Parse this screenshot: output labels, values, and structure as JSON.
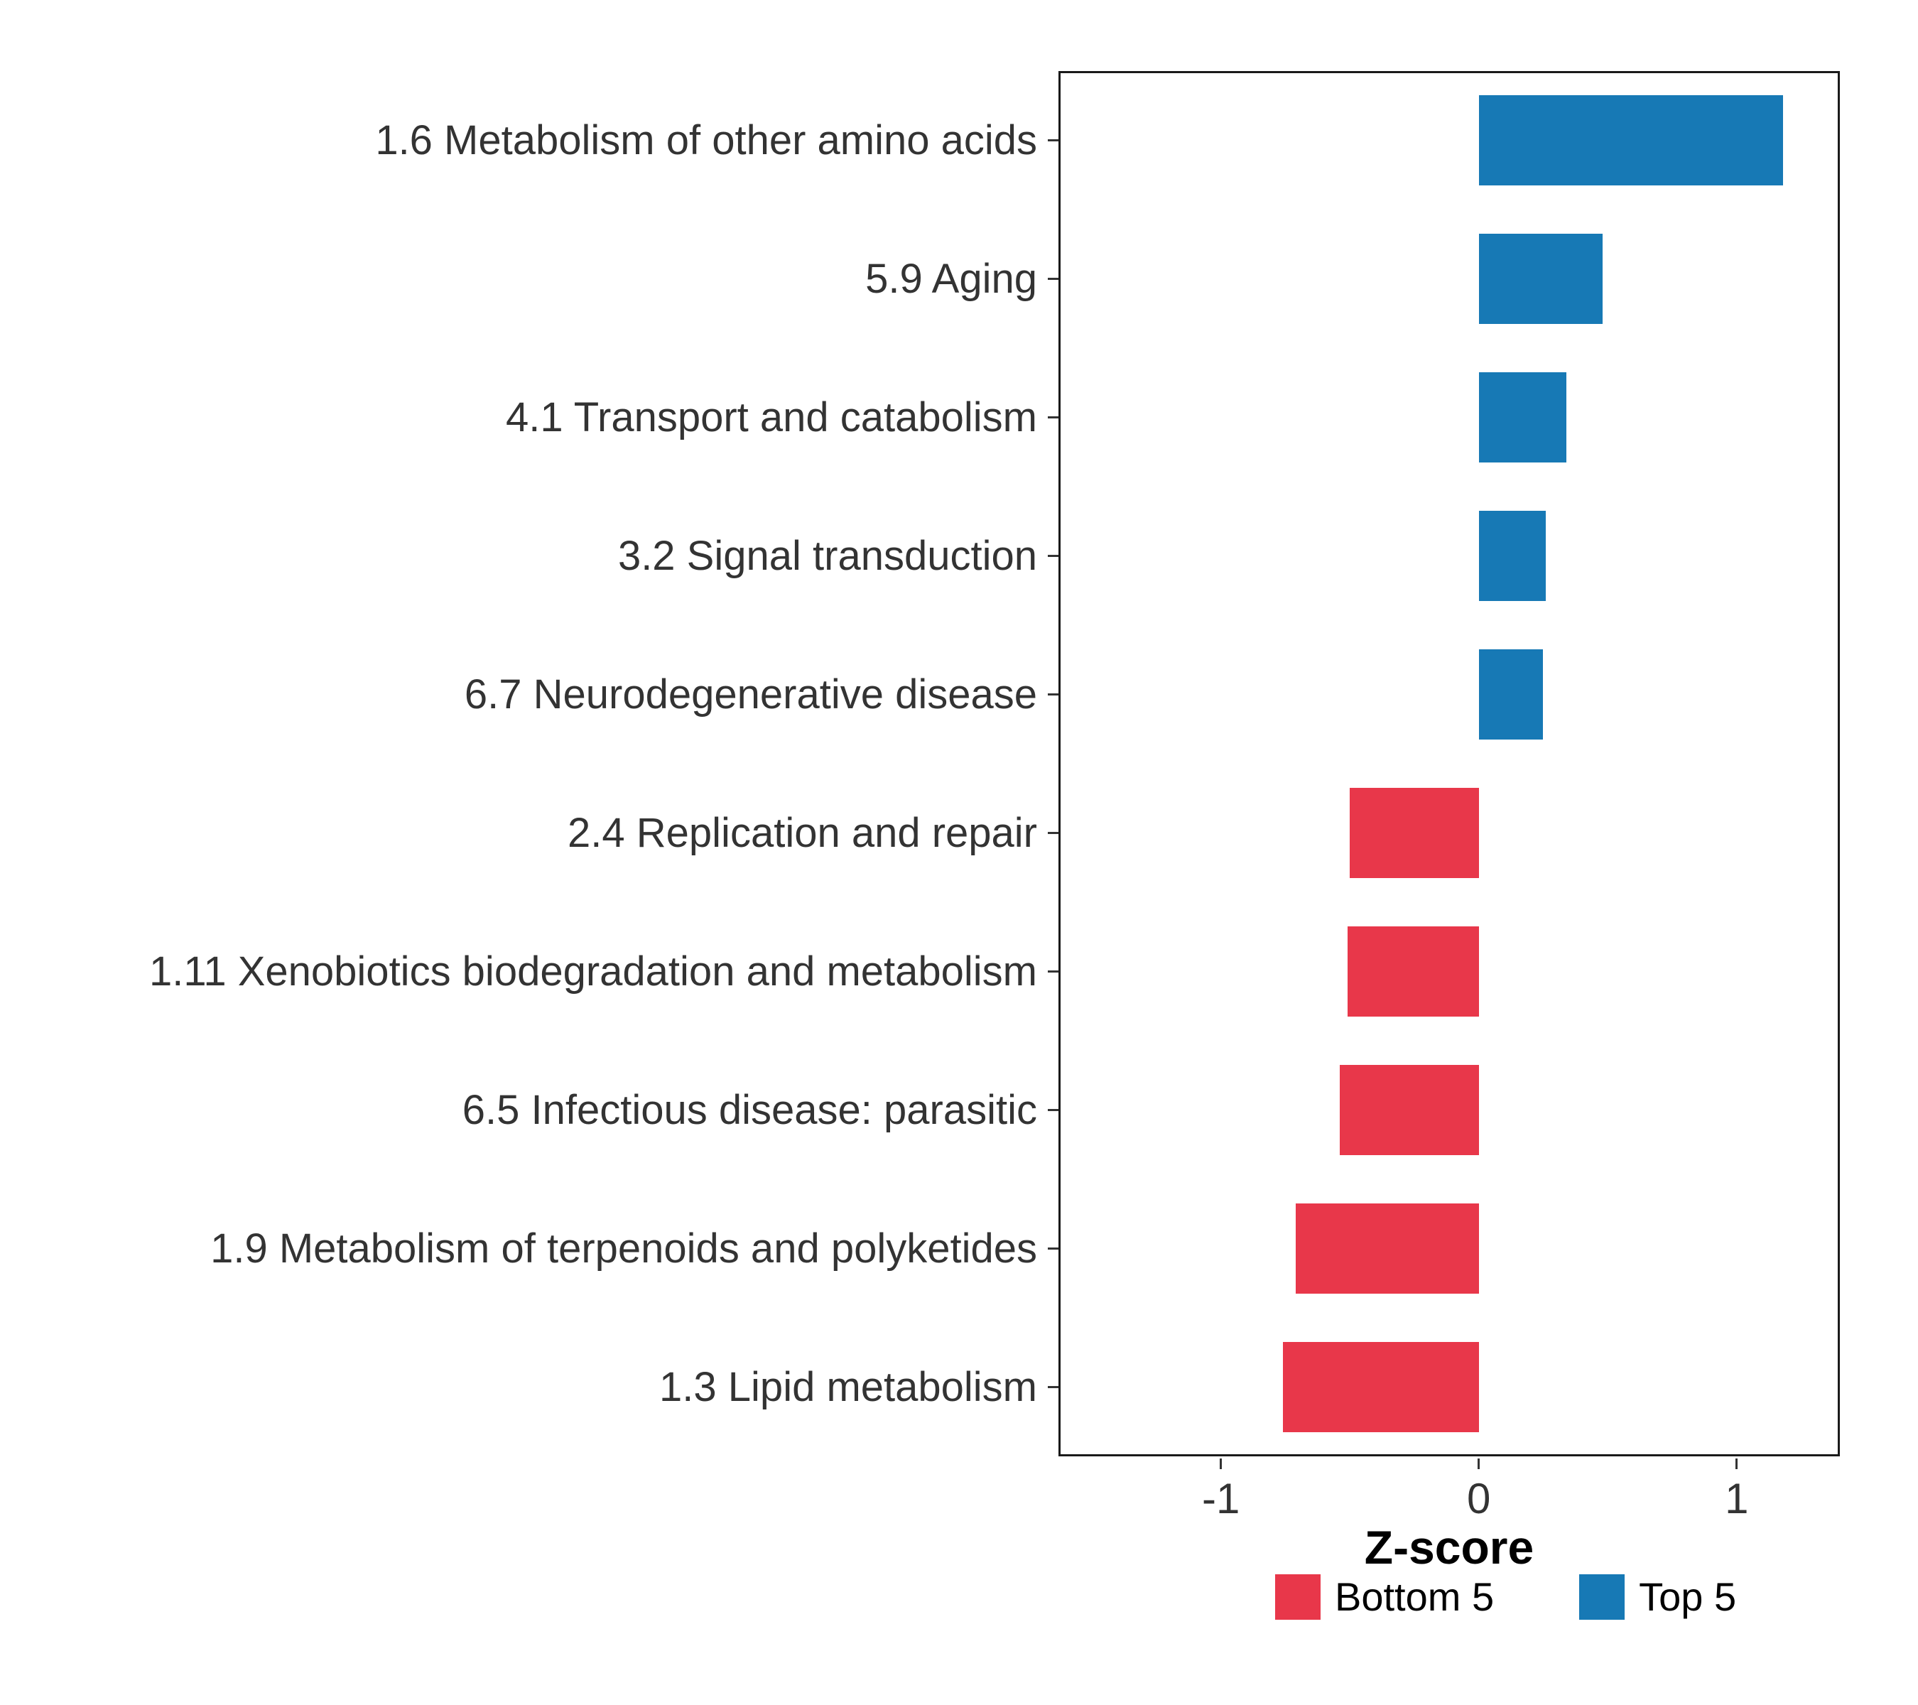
{
  "chart_data": {
    "type": "bar",
    "orientation": "horizontal",
    "title": "",
    "xlabel": "Z-score",
    "ylabel": "",
    "grid": false,
    "categories": [
      "1.6 Metabolism of other amino acids",
      "5.9 Aging",
      "4.1 Transport and catabolism",
      "3.2 Signal transduction",
      "6.7 Neurodegenerative disease",
      "2.4 Replication and repair",
      "1.11 Xenobiotics biodegradation and metabolism",
      "6.5 Infectious disease: parasitic",
      "1.9 Metabolism of terpenoids and polyketides",
      "1.3 Lipid metabolism"
    ],
    "values": [
      1.18,
      0.48,
      0.34,
      0.26,
      0.25,
      -0.5,
      -0.51,
      -0.54,
      -0.71,
      -0.76
    ],
    "groups": [
      "Top 5",
      "Top 5",
      "Top 5",
      "Top 5",
      "Top 5",
      "Bottom 5",
      "Bottom 5",
      "Bottom 5",
      "Bottom 5",
      "Bottom 5"
    ],
    "colors": {
      "Top 5": "#1779B5",
      "Bottom 5": "#E8374A"
    },
    "xlim": [
      -1.63,
      1.4
    ],
    "xticks": [
      -1,
      0,
      1
    ],
    "xtick_labels": [
      "-1",
      "0",
      "1"
    ],
    "legend_position": "bottom-right",
    "legend": [
      {
        "label": "Bottom 5",
        "color": "#E8374A"
      },
      {
        "label": "Top 5",
        "color": "#1779B5"
      }
    ]
  }
}
